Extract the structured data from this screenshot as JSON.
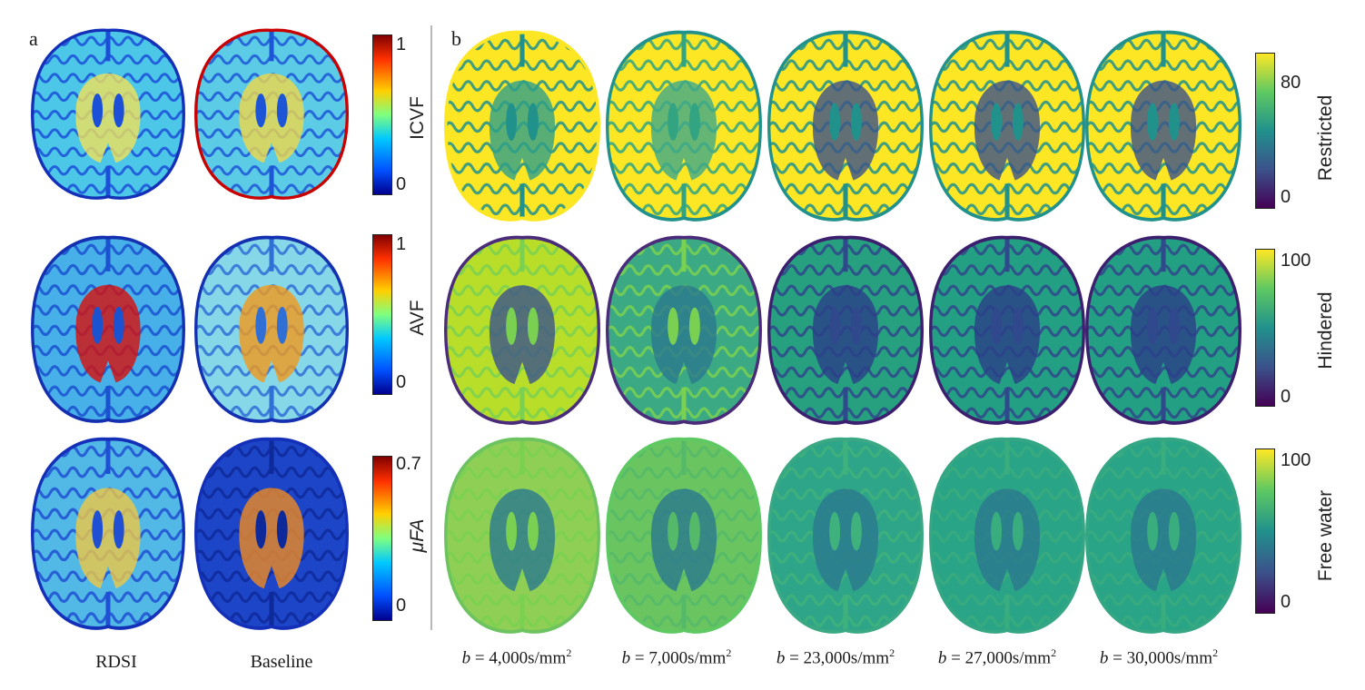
{
  "panel_a": {
    "label": "a",
    "columns": [
      "RDSI",
      "Baseline"
    ],
    "rows": [
      {
        "metric": "ICVF",
        "tick_max": "1",
        "tick_min": "0",
        "colormap": "jet"
      },
      {
        "metric": "AVF",
        "tick_max": "1",
        "tick_min": "0",
        "colormap": "jet"
      },
      {
        "metric": "μFA",
        "tick_max": "0.7",
        "tick_min": "0",
        "colormap": "jet"
      }
    ]
  },
  "panel_b": {
    "label": "b",
    "columns": [
      {
        "prefix": "b",
        "value": "= 4,000s/mm",
        "exp": "2"
      },
      {
        "prefix": "b",
        "value": "= 7,000s/mm",
        "exp": "2"
      },
      {
        "prefix": "b",
        "value": "= 23,000s/mm",
        "exp": "2"
      },
      {
        "prefix": "b",
        "value": "= 27,000s/mm",
        "exp": "2"
      },
      {
        "prefix": "b",
        "value": "= 30,000s/mm",
        "exp": "2"
      }
    ],
    "rows": [
      {
        "metric": "Restricted",
        "tick_max": "80",
        "tick_min": "0",
        "colormap": "viridis"
      },
      {
        "metric": "Hindered",
        "tick_max": "100",
        "tick_min": "0",
        "colormap": "viridis"
      },
      {
        "metric": "Free water",
        "tick_max": "100",
        "tick_min": "0",
        "colormap": "viridis"
      }
    ]
  },
  "colors": {
    "jet": [
      "#00008f",
      "#0050ff",
      "#00c8ff",
      "#7fff7f",
      "#ffd000",
      "#ff3000",
      "#800000"
    ],
    "viridis": [
      "#440154",
      "#3b528b",
      "#21918c",
      "#5ec962",
      "#fde725"
    ]
  }
}
